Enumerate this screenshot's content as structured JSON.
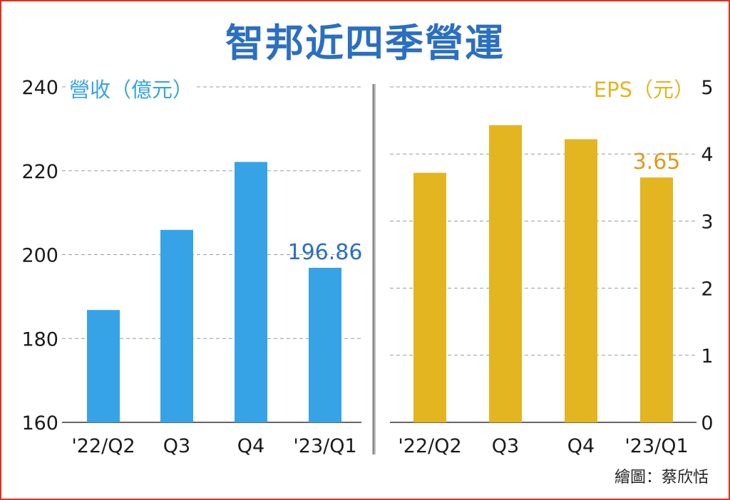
{
  "title": "智邦近四季營運",
  "credit": "繪圖：蔡欣恬",
  "chart_data": [
    {
      "type": "bar",
      "ylabel": "營收（億元）",
      "categories": [
        "'22/Q2",
        "Q3",
        "Q4",
        "'23/Q1"
      ],
      "values": [
        186.8,
        205.9,
        222.1,
        196.86
      ],
      "value_labels": [
        "",
        "",
        "",
        "196.86"
      ],
      "ylim": [
        160,
        240
      ],
      "yticks": [
        "160",
        "180",
        "200",
        "220",
        "240"
      ],
      "color": "#36a3e6",
      "label_color": "#2b6fc0",
      "grid": true
    },
    {
      "type": "bar",
      "ylabel": "EPS（元）",
      "categories": [
        "'22/Q2",
        "Q3",
        "Q4",
        "'23/Q1"
      ],
      "values": [
        3.72,
        4.43,
        4.22,
        3.65
      ],
      "value_labels": [
        "",
        "",
        "",
        "3.65"
      ],
      "ylim": [
        0,
        5
      ],
      "yticks": [
        "0",
        "1",
        "2",
        "3",
        "4",
        "5"
      ],
      "color": "#e3b520",
      "label_color": "#e09a1a",
      "grid": true
    }
  ]
}
